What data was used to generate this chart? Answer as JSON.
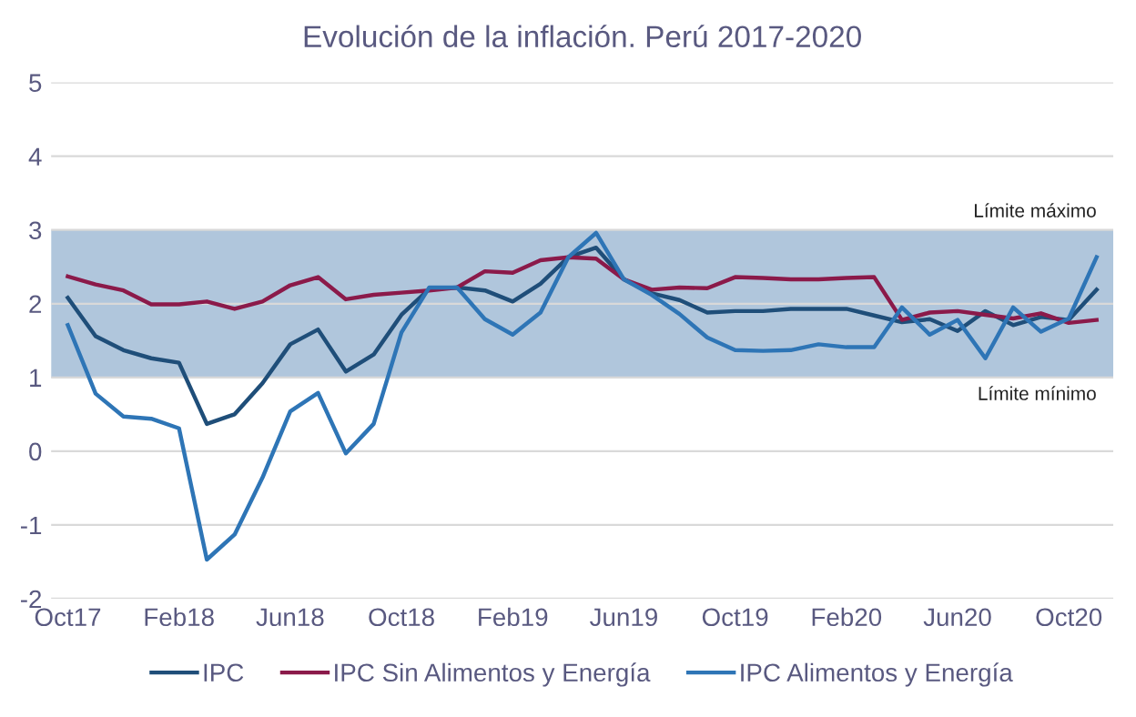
{
  "chart_data": {
    "type": "line",
    "title": "Evolución de la inflación. Perú 2017-2020",
    "categories": [
      "Oct17",
      null,
      null,
      null,
      "Feb18",
      null,
      null,
      null,
      "Jun18",
      null,
      null,
      null,
      "Oct18",
      null,
      null,
      null,
      "Feb19",
      null,
      null,
      null,
      "Jun19",
      null,
      null,
      null,
      "Oct19",
      null,
      null,
      null,
      "Feb20",
      null,
      null,
      null,
      "Jun20",
      null,
      null,
      null,
      "Oct20",
      null
    ],
    "series": [
      {
        "name": "IPC",
        "color": "#1f4e79",
        "values": [
          2.08,
          1.56,
          1.37,
          1.26,
          1.2,
          0.37,
          0.5,
          0.92,
          1.45,
          1.65,
          1.08,
          1.31,
          1.85,
          2.2,
          2.22,
          2.18,
          2.03,
          2.27,
          2.63,
          2.76,
          2.33,
          2.14,
          2.05,
          1.88,
          1.9,
          1.9,
          1.93,
          1.93,
          1.93,
          1.84,
          1.75,
          1.79,
          1.63,
          1.9,
          1.71,
          1.82,
          1.78,
          2.19
        ]
      },
      {
        "name": "IPC Sin Alimentos y Energía",
        "color": "#8b1a4a",
        "values": [
          2.37,
          2.26,
          2.18,
          1.99,
          1.99,
          2.03,
          1.93,
          2.03,
          2.25,
          2.36,
          2.06,
          2.12,
          2.15,
          2.18,
          2.22,
          2.44,
          2.42,
          2.59,
          2.63,
          2.61,
          2.33,
          2.19,
          2.22,
          2.21,
          2.36,
          2.35,
          2.33,
          2.33,
          2.35,
          2.36,
          1.78,
          1.88,
          1.9,
          1.85,
          1.8,
          1.87,
          1.74,
          1.78
        ]
      },
      {
        "name": "IPC Alimentos y Energía",
        "color": "#2e75b6",
        "values": [
          1.71,
          0.78,
          0.47,
          0.44,
          0.31,
          -1.47,
          -1.13,
          -0.36,
          0.54,
          0.79,
          -0.03,
          0.37,
          1.61,
          2.22,
          2.22,
          1.79,
          1.58,
          1.88,
          2.63,
          2.96,
          2.33,
          2.12,
          1.86,
          1.54,
          1.37,
          1.36,
          1.37,
          1.45,
          1.41,
          1.41,
          1.95,
          1.58,
          1.78,
          1.26,
          1.95,
          1.62,
          1.8,
          2.63
        ]
      }
    ],
    "ylim": [
      -2,
      5
    ],
    "yticks": [
      -2,
      -1,
      0,
      1,
      2,
      3,
      4,
      5
    ],
    "grid": "y",
    "legend": "bottom",
    "bands": [
      {
        "axis": "y",
        "from": 1,
        "to": 3,
        "color": "#b0c6dc"
      }
    ],
    "annotations": [
      {
        "text": "Límite máximo",
        "y": 3
      },
      {
        "text": "Límite mínimo",
        "y": 1
      }
    ]
  }
}
